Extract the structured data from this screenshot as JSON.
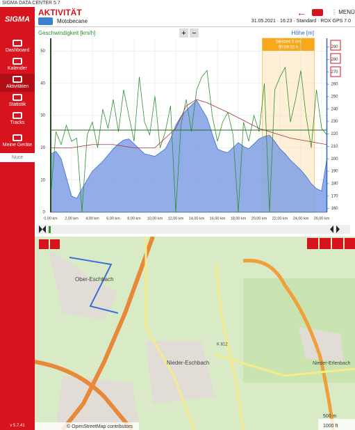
{
  "window": {
    "title": "SIGMA DATA CENTER 5.7"
  },
  "sidebar": {
    "logo": "SIGMA",
    "items": [
      "Dashboard",
      "Kalender",
      "Aktivitäten",
      "Statistik",
      "Tracks",
      "Meine Geräte"
    ],
    "device": "Nuce",
    "version": "v 5.7.41"
  },
  "header": {
    "title": "AKTIVITÄT",
    "bike": "Motobecane",
    "meta": "31.05.2021 · 16:23 · Standard · ROX GPS 7.0",
    "menu": "MENÜ"
  },
  "chart_data": {
    "type": "line",
    "ylabel": "Geschwindigkeit [km/h]",
    "y2label": "Höhe [m]",
    "xlim": [
      0,
      26.5
    ],
    "ylim": [
      0,
      54
    ],
    "y2lim": [
      157,
      297
    ],
    "xticks": [
      {
        "value": 0,
        "label": "0,00 km"
      },
      {
        "value": 2,
        "label": "2,00 km"
      },
      {
        "value": 4,
        "label": "4,00 km"
      },
      {
        "value": 6,
        "label": "6,00 km"
      },
      {
        "value": 8,
        "label": "8,00 km"
      },
      {
        "value": 10,
        "label": "10,00 km"
      },
      {
        "value": 12,
        "label": "12,00 km"
      },
      {
        "value": 14,
        "label": "14,00 km"
      },
      {
        "value": 16,
        "label": "16,00 km"
      },
      {
        "value": 18,
        "label": "18,00 km"
      },
      {
        "value": 20,
        "label": "20,00 km"
      },
      {
        "value": 22,
        "label": "22,00 km"
      },
      {
        "value": 24,
        "label": "24,00 km"
      },
      {
        "value": 26,
        "label": "26,00 km"
      }
    ],
    "yticks": [
      0,
      10,
      20,
      30,
      40,
      50
    ],
    "y2ticks": [
      160,
      170,
      180,
      190,
      200,
      210,
      220,
      230,
      240,
      250,
      260,
      270,
      280,
      290
    ],
    "grid": true,
    "x": [
      0,
      0.5,
      1,
      1.5,
      2,
      2.5,
      3,
      3.5,
      4,
      4.5,
      5,
      5.5,
      6,
      6.5,
      7,
      7.5,
      8,
      8.5,
      9,
      9.5,
      10,
      10.5,
      11,
      11.5,
      12,
      12.5,
      13,
      13.5,
      14,
      14.5,
      15,
      15.5,
      16,
      16.5,
      17,
      17.5,
      18,
      18.5,
      19,
      19.5,
      20,
      20.5,
      21,
      21.5,
      22,
      22.5,
      23,
      23.5,
      24,
      24.5,
      25,
      25.5,
      26,
      26.5
    ],
    "series": [
      {
        "name": "Höhe [m]",
        "color": "#7f9fe3",
        "axis": "y2",
        "values": [
          204,
          206,
          200,
          185,
          170,
          168,
          176,
          183,
          190,
          194,
          198,
          203,
          208,
          212,
          215,
          216,
          212,
          208,
          204,
          203,
          202,
          205,
          208,
          216,
          227,
          234,
          239,
          243,
          247,
          240,
          233,
          220,
          208,
          206,
          205,
          209,
          213,
          210,
          208,
          212,
          216,
          218,
          219,
          214,
          208,
          204,
          199,
          195,
          191,
          186,
          180,
          176,
          174,
          200
        ]
      },
      {
        "name": "Geschwindigkeit [km/h]",
        "color": "#2f8f2f",
        "values": [
          5,
          25,
          21,
          27,
          22,
          23,
          0,
          24,
          28,
          20,
          32,
          26,
          35,
          25,
          38,
          30,
          22,
          42,
          28,
          24,
          36,
          20,
          25,
          33,
          0,
          27,
          35,
          25,
          38,
          42,
          44,
          30,
          22,
          28,
          31,
          24,
          0,
          28,
          22,
          30,
          25,
          40,
          0,
          38,
          42,
          45,
          28,
          35,
          44,
          30,
          20,
          38,
          26,
          24
        ]
      }
    ],
    "secondary_line": {
      "color": "#a8323e",
      "x": [
        0,
        2,
        4,
        6,
        8,
        10,
        12,
        13,
        14,
        15,
        17,
        20,
        23,
        26.5
      ],
      "values": [
        20,
        20,
        21,
        21,
        20,
        20,
        26,
        33,
        35,
        34,
        31,
        26,
        23,
        21
      ]
    },
    "reference_line": {
      "color": "#1f6f1f",
      "value": 25.5
    },
    "highlight": {
      "xlim": [
        20.3,
        25.3
      ],
      "title": "Bestzeit 5 km",
      "time": "00:09:32 h",
      "color": "#f7a81b"
    }
  },
  "map": {
    "labels": [
      "Ober-Eschbach",
      "Nieder-Eschbach",
      "K 812",
      "Nieder-Erlenbach"
    ],
    "scale_m": "500 m",
    "scale_ft": "1000 ft",
    "attribution": "© OpenStreetMap contributors"
  }
}
